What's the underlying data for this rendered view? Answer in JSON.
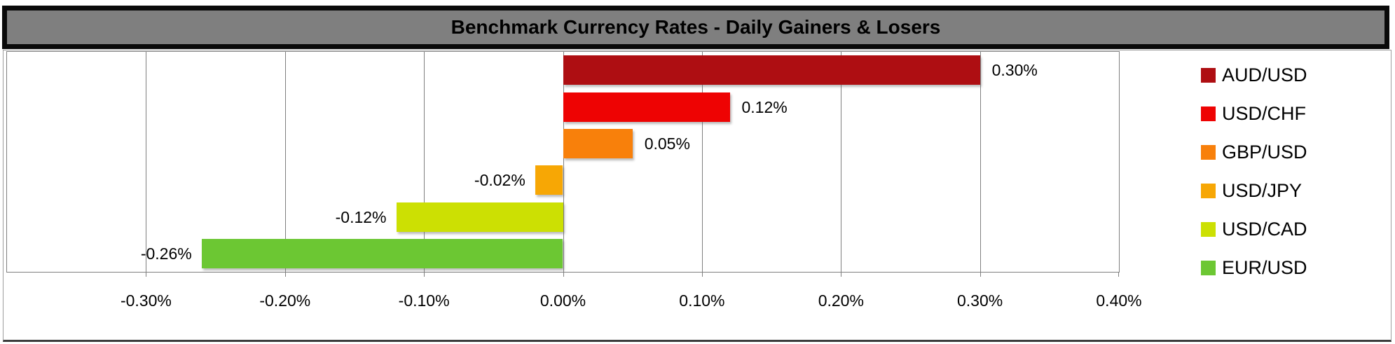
{
  "title": "Benchmark Currency Rates - Daily Gainers & Losers",
  "chart_data": {
    "type": "bar",
    "orientation": "horizontal",
    "title": "Benchmark Currency Rates - Daily Gainers & Losers",
    "categories": [
      "AUD/USD",
      "USD/CHF",
      "GBP/USD",
      "USD/JPY",
      "USD/CAD",
      "EUR/USD"
    ],
    "values": [
      0.3,
      0.12,
      0.05,
      -0.02,
      -0.12,
      -0.26
    ],
    "data_labels": [
      "0.30%",
      "0.12%",
      "0.05%",
      "-0.02%",
      "-0.12%",
      "-0.26%"
    ],
    "bar_colors": [
      "#ae0e12",
      "#ee0303",
      "#f8800b",
      "#f7a705",
      "#cce003",
      "#6cc733"
    ],
    "xlabel": "",
    "ylabel": "",
    "xlim": [
      -0.4,
      0.4
    ],
    "x_ticks": [
      -0.3,
      -0.2,
      -0.1,
      0.0,
      0.1,
      0.2,
      0.3,
      0.4
    ],
    "x_tick_labels": [
      "-0.30%",
      "-0.20%",
      "-0.10%",
      "0.00%",
      "0.10%",
      "0.20%",
      "0.30%",
      "0.40%"
    ],
    "grid": true,
    "legend_position": "right",
    "legend": [
      {
        "label": "AUD/USD",
        "color": "#ae0e12"
      },
      {
        "label": "USD/CHF",
        "color": "#ee0303"
      },
      {
        "label": "GBP/USD",
        "color": "#f8800b"
      },
      {
        "label": "USD/JPY",
        "color": "#f7a705"
      },
      {
        "label": "USD/CAD",
        "color": "#cce003"
      },
      {
        "label": "EUR/USD",
        "color": "#6cc733"
      }
    ]
  },
  "colors": {
    "title_bar_fill": "#7f7f7f",
    "title_bar_border": "#0a0a0a",
    "gridline": "#7f7f7f",
    "text": "#000000",
    "plot_background": "#ffffff"
  }
}
